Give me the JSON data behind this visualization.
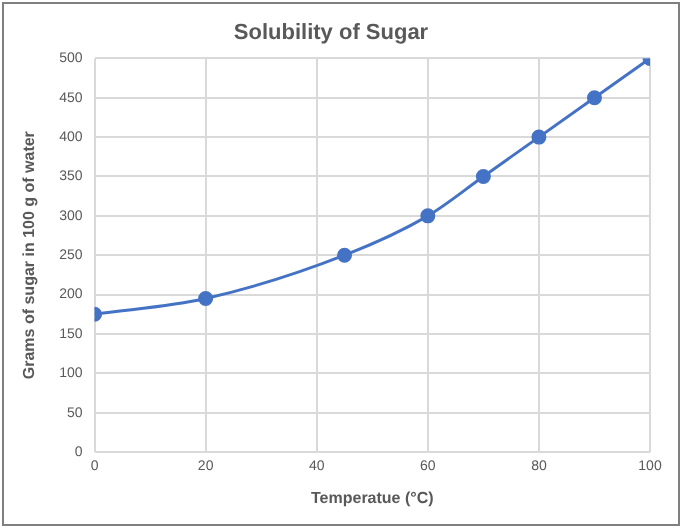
{
  "chart_data": {
    "type": "line",
    "title": "Solubility of Sugar",
    "xlabel": "Temperatue (°C)",
    "ylabel": "Grams of sugar in 100 g of water",
    "x": [
      0,
      20,
      45,
      60,
      70,
      80,
      90,
      100
    ],
    "series": [
      {
        "color": "#4472c4",
        "values": [
          175,
          195,
          250,
          300,
          350,
          400,
          450,
          500
        ]
      }
    ],
    "xlim": [
      0,
      100
    ],
    "xticks": [
      0,
      20,
      40,
      60,
      80,
      100
    ],
    "ylim": [
      0,
      500
    ],
    "yticks": [
      0,
      50,
      100,
      150,
      200,
      250,
      300,
      350,
      400,
      450,
      500
    ],
    "grid": true,
    "legend": false,
    "marker": "circle",
    "line_style": "solid"
  }
}
